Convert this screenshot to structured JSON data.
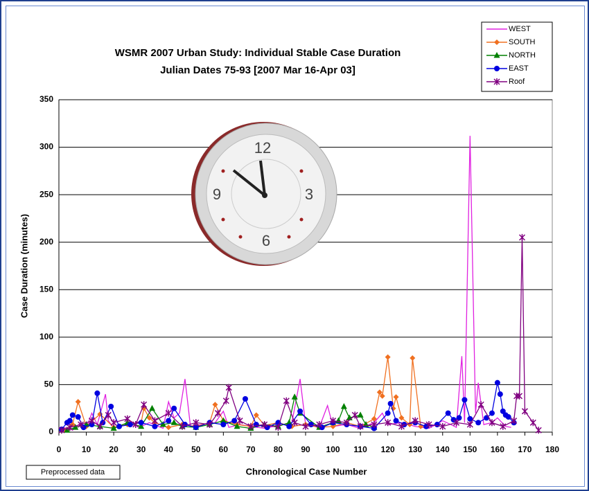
{
  "chart_data": {
    "type": "line",
    "title": "WSMR 2007 Urban Study:  Individual Stable Case Duration",
    "subtitle": "Julian Dates 75-93 [2007 Mar 16-Apr 03]",
    "x_label": "Chronological Case Number",
    "y_label": "Case Duration (minutes)",
    "note": "Preprocessed data",
    "xlim": [
      0,
      180
    ],
    "xticks": [
      0,
      10,
      20,
      30,
      40,
      50,
      60,
      70,
      80,
      90,
      100,
      110,
      120,
      130,
      140,
      150,
      160,
      170,
      180
    ],
    "ylim": [
      0,
      350
    ],
    "yticks": [
      0,
      50,
      100,
      150,
      200,
      250,
      300,
      350
    ],
    "grid": true,
    "legend": "top-right",
    "series": [
      {
        "name": "WEST",
        "color": "#e020e0",
        "marker": "none",
        "x": [
          1,
          3,
          5,
          8,
          10,
          12,
          14,
          17,
          18,
          20,
          25,
          30,
          33,
          38,
          40,
          42,
          44,
          46,
          48,
          52,
          57,
          60,
          62,
          66,
          70,
          75,
          80,
          85,
          88,
          90,
          95,
          98,
          100,
          105,
          110,
          115,
          118,
          120,
          125,
          130,
          135,
          140,
          143,
          145,
          147,
          148,
          150,
          152,
          153,
          155,
          158,
          160,
          163,
          165
        ],
        "values": [
          3,
          5,
          2,
          10,
          4,
          20,
          8,
          40,
          12,
          5,
          8,
          6,
          10,
          4,
          32,
          15,
          20,
          56,
          6,
          8,
          10,
          22,
          5,
          8,
          6,
          4,
          7,
          10,
          56,
          8,
          5,
          28,
          6,
          8,
          4,
          10,
          20,
          8,
          10,
          6,
          4,
          12,
          8,
          5,
          80,
          10,
          312,
          20,
          52,
          8,
          10,
          15,
          6,
          5
        ]
      },
      {
        "name": "SOUTH",
        "color": "#f07020",
        "marker": "diamond",
        "x": [
          2,
          5,
          7,
          10,
          15,
          20,
          25,
          30,
          31,
          33,
          35,
          40,
          45,
          50,
          55,
          57,
          60,
          65,
          70,
          72,
          75,
          80,
          85,
          90,
          95,
          100,
          105,
          110,
          115,
          117,
          118,
          120,
          122,
          123,
          125,
          128,
          129,
          132
        ],
        "values": [
          2,
          8,
          32,
          6,
          19,
          5,
          8,
          10,
          25,
          15,
          10,
          5,
          8,
          6,
          10,
          29,
          12,
          8,
          6,
          18,
          7,
          10,
          6,
          8,
          5,
          6,
          10,
          6,
          14,
          42,
          38,
          79,
          25,
          37,
          15,
          8,
          78,
          6
        ]
      },
      {
        "name": "NORTH",
        "color": "#008000",
        "marker": "triangle",
        "x": [
          3,
          6,
          10,
          15,
          20,
          25,
          30,
          34,
          38,
          42,
          45,
          50,
          55,
          60,
          65,
          70,
          75,
          80,
          84,
          86,
          88,
          95,
          100,
          102,
          104,
          106,
          110,
          112,
          115
        ],
        "values": [
          2,
          5,
          8,
          6,
          4,
          10,
          6,
          25,
          8,
          10,
          6,
          5,
          8,
          12,
          6,
          4,
          8,
          6,
          10,
          37,
          20,
          5,
          10,
          12,
          27,
          15,
          18,
          8,
          5
        ]
      },
      {
        "name": "EAST",
        "color": "#0000e0",
        "marker": "circle",
        "x": [
          1,
          3,
          4,
          5,
          7,
          9,
          12,
          14,
          16,
          19,
          22,
          26,
          30,
          35,
          40,
          42,
          46,
          50,
          55,
          60,
          64,
          68,
          72,
          76,
          80,
          84,
          88,
          92,
          96,
          100,
          105,
          110,
          115,
          120,
          121,
          123,
          126,
          130,
          134,
          138,
          142,
          144,
          146,
          148,
          150,
          153,
          156,
          158,
          160,
          161,
          162,
          163,
          164,
          166
        ],
        "values": [
          3,
          10,
          12,
          18,
          16,
          5,
          8,
          41,
          10,
          27,
          6,
          8,
          10,
          6,
          12,
          25,
          8,
          5,
          10,
          8,
          12,
          35,
          8,
          5,
          10,
          6,
          22,
          8,
          5,
          10,
          8,
          6,
          4,
          20,
          30,
          12,
          8,
          10,
          6,
          8,
          20,
          13,
          15,
          34,
          14,
          10,
          15,
          20,
          52,
          40,
          22,
          18,
          16,
          10
        ]
      },
      {
        "name": "Roof",
        "color": "#800080",
        "marker": "star",
        "x": [
          1,
          4,
          8,
          12,
          15,
          18,
          20,
          25,
          28,
          31,
          35,
          40,
          45,
          50,
          55,
          58,
          61,
          62,
          66,
          70,
          75,
          80,
          83,
          86,
          90,
          95,
          100,
          105,
          108,
          110,
          115,
          120,
          125,
          130,
          135,
          140,
          145,
          150,
          154,
          158,
          162,
          166,
          167,
          168,
          169,
          170,
          173,
          175
        ],
        "values": [
          2,
          5,
          8,
          12,
          6,
          18,
          10,
          14,
          8,
          29,
          12,
          20,
          6,
          10,
          8,
          20,
          33,
          47,
          12,
          6,
          8,
          5,
          33,
          10,
          6,
          8,
          12,
          10,
          18,
          6,
          8,
          10,
          6,
          12,
          8,
          6,
          10,
          8,
          29,
          10,
          6,
          12,
          38,
          38,
          205,
          22,
          10,
          2
        ]
      }
    ]
  }
}
